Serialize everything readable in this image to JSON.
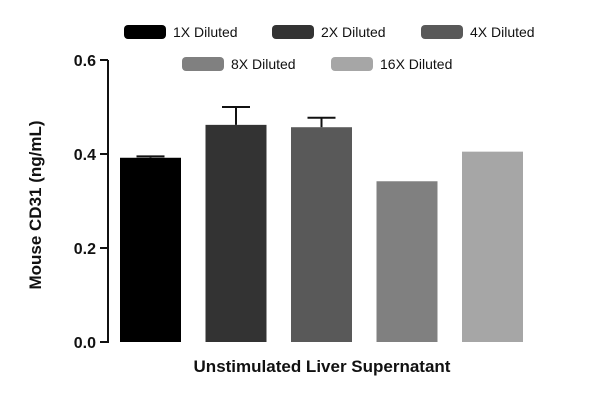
{
  "chart_data": {
    "type": "bar",
    "title": "",
    "xlabel": "Unstimulated Liver Supernatant",
    "ylabel": "Mouse CD31 (ng/mL)",
    "ylim": [
      0.0,
      0.6
    ],
    "yticks": [
      0.0,
      0.2,
      0.4,
      0.6
    ],
    "ytick_labels": [
      "0.0",
      "0.2",
      "0.4",
      "0.6"
    ],
    "grid": false,
    "legend_position": "top",
    "series": [
      {
        "name": "1X Diluted",
        "value": 0.392,
        "error": 0.003,
        "color": "#000000"
      },
      {
        "name": "2X Diluted",
        "value": 0.462,
        "error": 0.038,
        "color": "#333333"
      },
      {
        "name": "4X Diluted",
        "value": 0.457,
        "error": 0.02,
        "color": "#595959"
      },
      {
        "name": "8X Diluted",
        "value": 0.342,
        "error": 0.0,
        "color": "#808080"
      },
      {
        "name": "16X Diluted",
        "value": 0.405,
        "error": 0.0,
        "color": "#a6a6a6"
      }
    ]
  }
}
